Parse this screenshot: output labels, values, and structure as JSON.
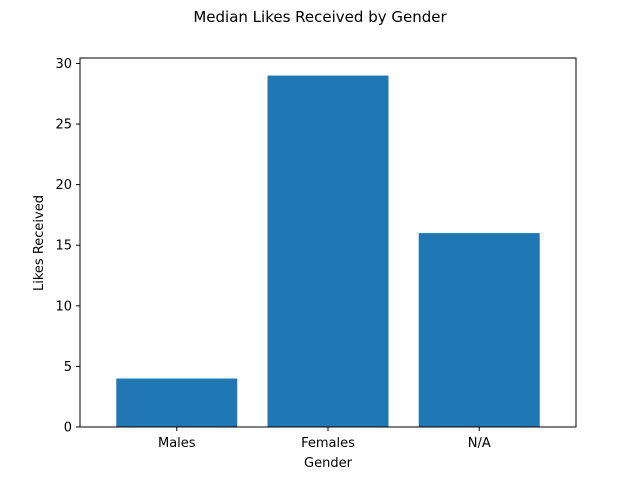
{
  "chart_data": {
    "type": "bar",
    "title": "Median Likes Received by Gender",
    "xlabel": "Gender",
    "ylabel": "Likes Received",
    "categories": [
      "Males",
      "Females",
      "N/A"
    ],
    "values": [
      4,
      29,
      16
    ],
    "ylim": [
      0,
      30.45
    ],
    "yticks": [
      "0",
      "5",
      "10",
      "15",
      "20",
      "25",
      "30"
    ],
    "grid": false,
    "legend": "none",
    "colors": {
      "bar": "#1f77b4",
      "axis": "#000000",
      "background": "#ffffff"
    }
  }
}
